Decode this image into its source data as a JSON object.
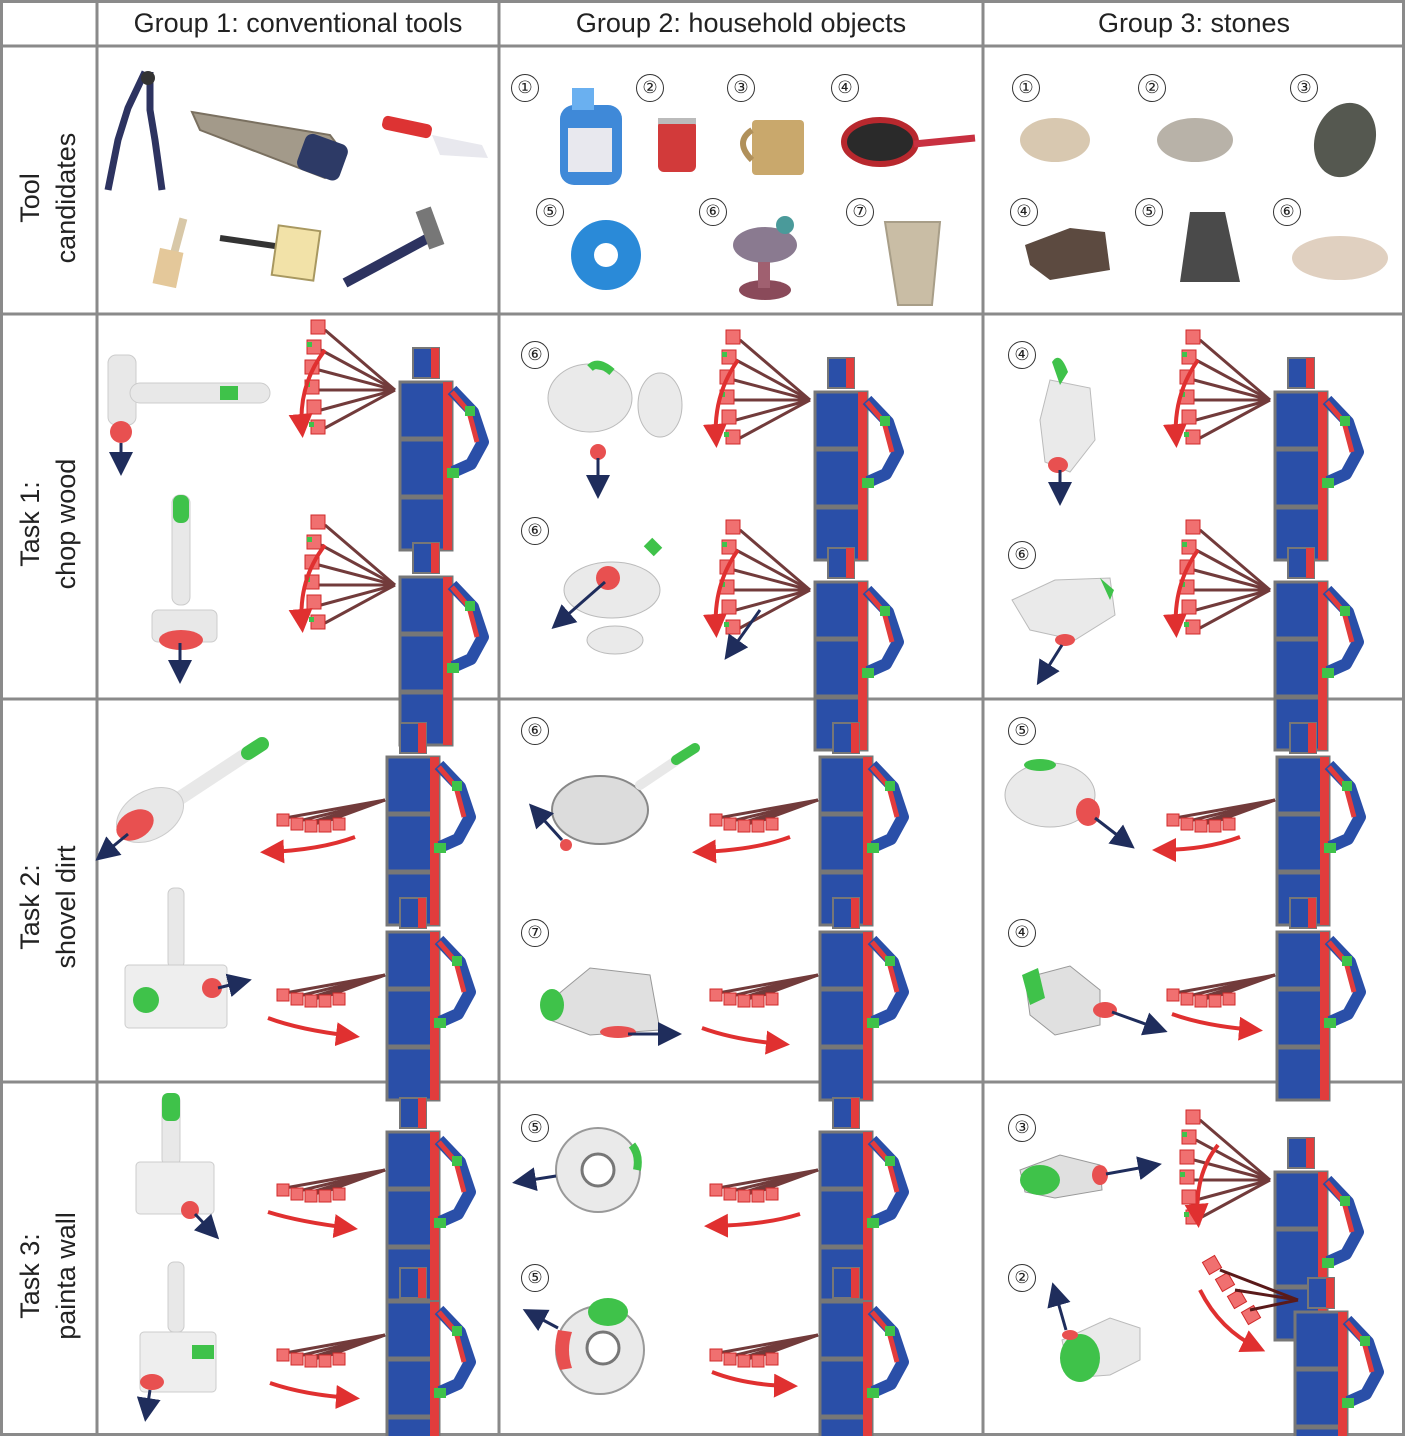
{
  "columns": [
    {
      "label": ""
    },
    {
      "label": "Group 1: conventional tools"
    },
    {
      "label": "Group 2: household objects"
    },
    {
      "label": "Group 3: stones"
    }
  ],
  "rows": [
    {
      "line1": "Tool",
      "line2": "candidates"
    },
    {
      "line1": "Task 1:",
      "line2": "chop wood"
    },
    {
      "line1": "Task 2:",
      "line2": "shovel dirt"
    },
    {
      "line1": "Task 3:",
      "line2": "painta wall"
    }
  ],
  "candidates": {
    "household": [
      {
        "num": "①",
        "name": "detergent-bottle"
      },
      {
        "num": "②",
        "name": "soda-can"
      },
      {
        "num": "③",
        "name": "mug"
      },
      {
        "num": "④",
        "name": "frying-pan"
      },
      {
        "num": "⑤",
        "name": "donut-ring"
      },
      {
        "num": "⑥",
        "name": "bird-figurine"
      },
      {
        "num": "⑦",
        "name": "paper-cup"
      }
    ],
    "stones": [
      {
        "num": "①"
      },
      {
        "num": "②"
      },
      {
        "num": "③"
      },
      {
        "num": "④"
      },
      {
        "num": "⑤"
      },
      {
        "num": "⑥"
      }
    ]
  },
  "task_labels": {
    "t1_household": [
      "⑥",
      "⑥"
    ],
    "t1_stones": [
      "④",
      "⑥"
    ],
    "t2_household": [
      "⑥",
      "⑦"
    ],
    "t2_stones": [
      "⑤",
      "④"
    ],
    "t3_household": [
      "⑤",
      "⑤"
    ],
    "t3_stones": [
      "③",
      "②"
    ]
  },
  "colors": {
    "grid": "#8a8a8a",
    "robot_body": "#2a4fa8",
    "robot_side": "#e23c3c",
    "contact_red": "#e85050",
    "grasp_green": "#3fc24a",
    "arrow_red": "#e03030",
    "arrow_navy": "#1f2d5c",
    "mesh_gray": "#e8e8e8"
  }
}
